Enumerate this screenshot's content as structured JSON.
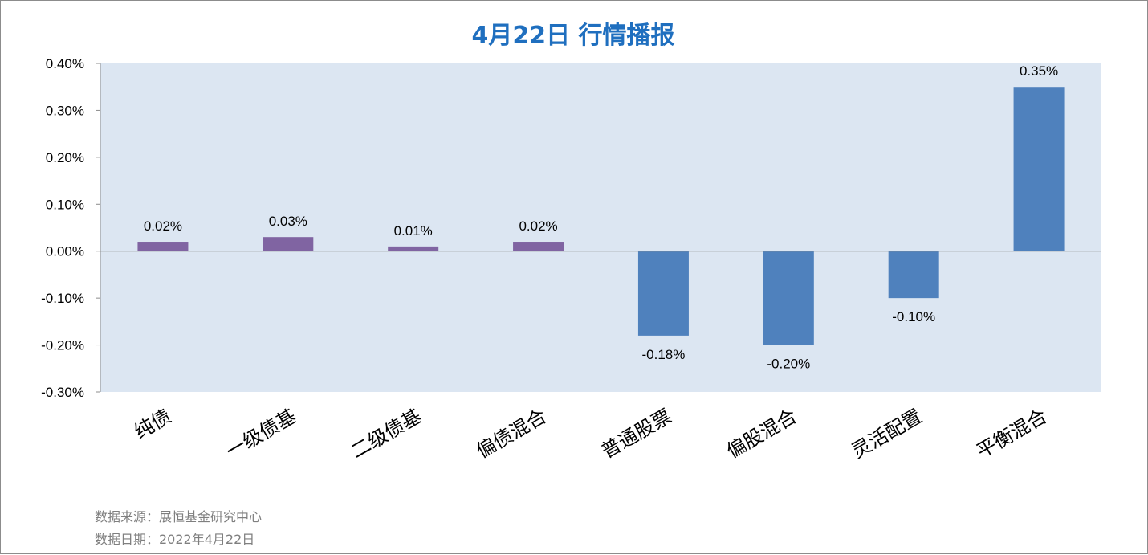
{
  "chart_data": {
    "type": "bar",
    "title": "4月22日  行情播报",
    "categories": [
      "纯债",
      "一级债基",
      "二级债基",
      "偏债混合",
      "普通股票",
      "偏股混合",
      "灵活配置",
      "平衡混合"
    ],
    "values": [
      0.02,
      0.03,
      0.01,
      0.02,
      -0.18,
      -0.2,
      -0.1,
      0.35
    ],
    "data_labels": [
      "0.02%",
      "0.03%",
      "0.01%",
      "0.02%",
      "-0.18%",
      "-0.20%",
      "-0.10%",
      "0.35%"
    ],
    "bar_colors": [
      "#8064a2",
      "#8064a2",
      "#8064a2",
      "#8064a2",
      "#4f81bd",
      "#4f81bd",
      "#4f81bd",
      "#4f81bd"
    ],
    "ylim": [
      -0.3,
      0.4
    ],
    "yticks": [
      0.4,
      0.3,
      0.2,
      0.1,
      0.0,
      -0.1,
      -0.2,
      -0.3
    ],
    "ytick_labels": [
      "0.40%",
      "0.30%",
      "0.20%",
      "0.10%",
      "0.00%",
      "-0.10%",
      "-0.20%",
      "-0.30%"
    ],
    "plot_bg": "#dce6f2",
    "grid": false,
    "legend": "none",
    "xlabel": "",
    "ylabel": ""
  },
  "footer": {
    "source": "数据来源：展恒基金研究中心",
    "date": "数据日期：2022年4月22日"
  }
}
